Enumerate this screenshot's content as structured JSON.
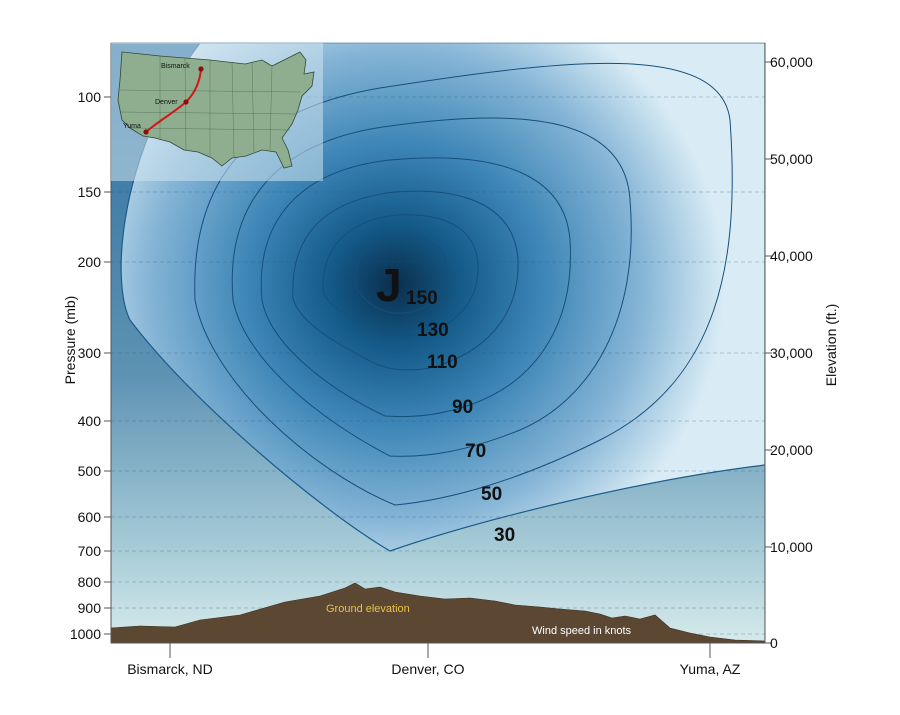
{
  "left_axis": {
    "title": "Pressure (mb)",
    "ticks": [
      "100",
      "150",
      "200",
      "300",
      "400",
      "500",
      "600",
      "700",
      "800",
      "900",
      "1000"
    ]
  },
  "right_axis": {
    "title": "Elevation (ft.)",
    "ticks": [
      "60,000",
      "50,000",
      "40,000",
      "30,000",
      "20,000",
      "10,000",
      "0"
    ]
  },
  "bottom_axis": {
    "locations": [
      "Bismarck, ND",
      "Denver, CO",
      "Yuma, AZ"
    ]
  },
  "jet": {
    "label": "J",
    "contours": [
      "150",
      "130",
      "110",
      "90",
      "70",
      "50",
      "30"
    ]
  },
  "annotations": {
    "ground": "Ground elevation",
    "wind": "Wind speed in knots"
  },
  "inset_map": {
    "cities": [
      "Bismarck",
      "Denver",
      "Yuma"
    ]
  },
  "colors": {
    "jet_core": "#0d3a5c",
    "jet_edge": "#a9cbe2",
    "ground": "#5b4732",
    "route": "#d01818",
    "map_land": "#8fae8f"
  }
}
